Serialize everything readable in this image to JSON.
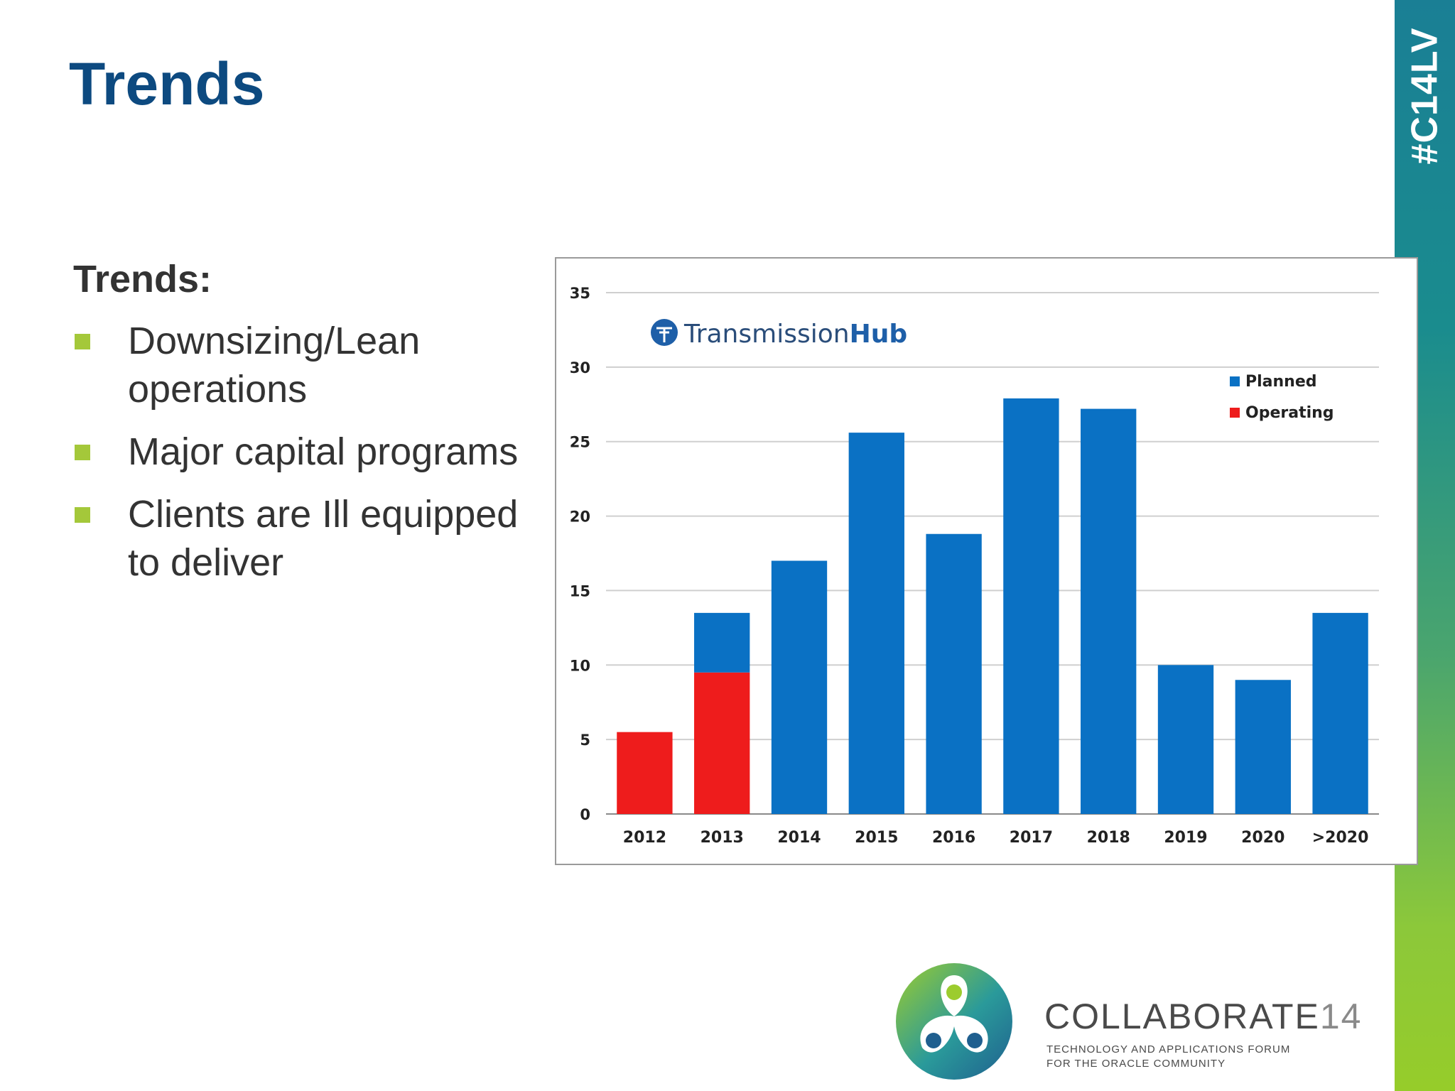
{
  "slide": {
    "title": "Trends",
    "hashtag": "#C14LV",
    "bullets_title": "Trends:",
    "bullets": [
      "Downsizing/Lean operations",
      "Major capital programs",
      "Clients are Ill equipped to deliver"
    ],
    "colors": {
      "title": "#0d4a80",
      "bullet_marker": "#a4c83a"
    }
  },
  "chart_data": {
    "type": "bar",
    "stacked": true,
    "title": "",
    "brand_label": {
      "text_regular": "Transmission",
      "text_bold": "Hub"
    },
    "categories": [
      "2012",
      "2013",
      "2014",
      "2015",
      "2016",
      "2017",
      "2018",
      "2019",
      "2020",
      ">2020"
    ],
    "series": [
      {
        "name": "Operating",
        "color": "#ee1c1c",
        "values": [
          5.5,
          9.5,
          0,
          0,
          0,
          0,
          0,
          0,
          0,
          0
        ]
      },
      {
        "name": "Planned",
        "color": "#0a71c4",
        "values": [
          0,
          4,
          17,
          25.6,
          18.8,
          27.9,
          27.2,
          10,
          9,
          13.5
        ]
      }
    ],
    "legend_order": [
      "Planned",
      "Operating"
    ],
    "yticks": [
      "0",
      "5",
      "10",
      "15",
      "20",
      "25",
      "30",
      "35"
    ],
    "ylim": [
      0,
      35
    ],
    "grid": true,
    "legend_position": "top-right",
    "xlabel": "",
    "ylabel": ""
  },
  "footer": {
    "logo_word": "COLLABORATE",
    "logo_number": "14",
    "logo_subtitle_line1": "TECHNOLOGY AND APPLICATIONS FORUM",
    "logo_subtitle_line2": "FOR THE ORACLE COMMUNITY"
  }
}
